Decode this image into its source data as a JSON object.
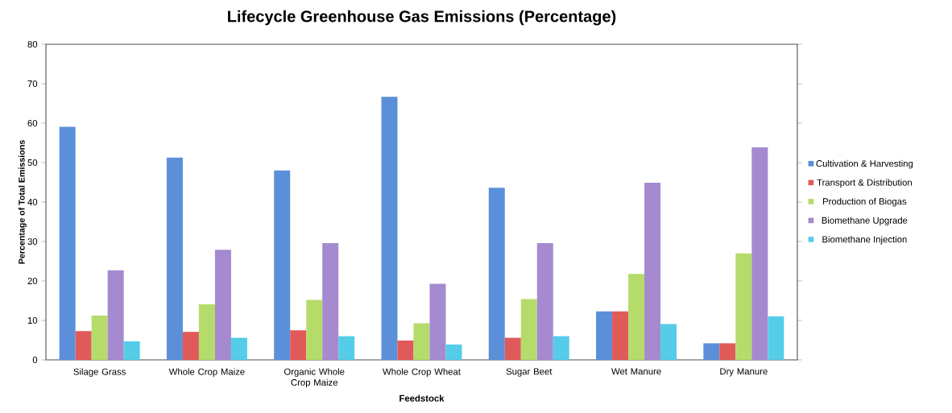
{
  "chart_data": {
    "type": "bar",
    "title": "Lifecycle Greenhouse Gas Emissions (Percentage)",
    "xlabel": "Feedstock",
    "ylabel": "Percentage of Total Emissions",
    "categories": [
      "Silage Grass",
      "Whole Crop Maize",
      "Organic Whole Crop Maize",
      "Whole Crop Wheat",
      "Sugar Beet",
      "Wet Manure",
      "Dry Manure"
    ],
    "series": [
      {
        "name": "Cultivation & Harvesting",
        "color": "#5b8fd9",
        "values": [
          59.1,
          51.3,
          48.0,
          66.7,
          43.6,
          12.3,
          4.2
        ]
      },
      {
        "name": "Transport & Distribution",
        "color": "#e05a5a",
        "values": [
          7.3,
          7.1,
          7.5,
          4.9,
          5.6,
          12.3,
          4.2
        ]
      },
      {
        "name": "Production of Biogas",
        "color": "#b5dc6a",
        "values": [
          11.2,
          14.1,
          15.2,
          9.3,
          15.4,
          21.8,
          27.0
        ]
      },
      {
        "name": "Biomethane Upgrade",
        "color": "#a58ad0",
        "values": [
          22.7,
          27.9,
          29.6,
          19.3,
          29.6,
          44.9,
          53.9
        ]
      },
      {
        "name": "Biomethane Injection",
        "color": "#55cde8",
        "values": [
          4.7,
          5.6,
          6.0,
          3.9,
          6.0,
          9.1,
          11.0
        ]
      }
    ],
    "ylim": [
      0,
      80
    ],
    "yticks": [
      0,
      10,
      20,
      30,
      40,
      50,
      60,
      70,
      80
    ],
    "grid": false,
    "legend": "right"
  }
}
